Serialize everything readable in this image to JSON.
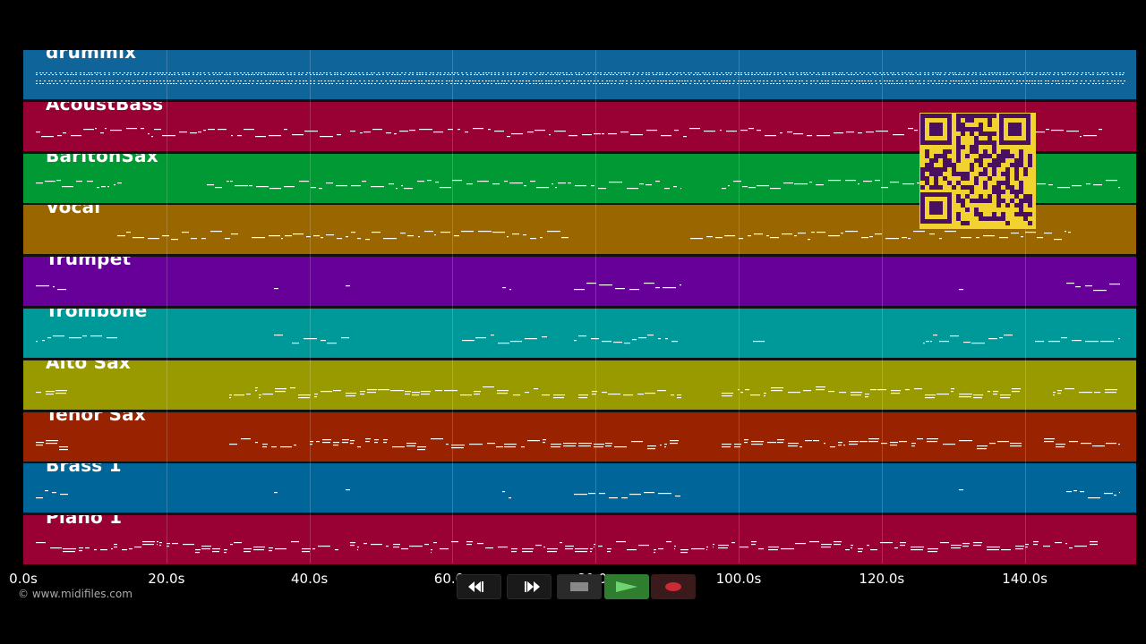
{
  "tracks": [
    {
      "name": "drummix",
      "color": "#0f6499",
      "pattern": "drum"
    },
    {
      "name": "AcoustBass",
      "color": "#990033",
      "pattern": "bass"
    },
    {
      "name": "BaritonSax",
      "color": "#009933",
      "pattern": "bari"
    },
    {
      "name": "Vocal",
      "color": "#996600",
      "pattern": "vocal"
    },
    {
      "name": "Trumpet",
      "color": "#660099",
      "pattern": "sparse"
    },
    {
      "name": "Trombone",
      "color": "#009999",
      "pattern": "trombone"
    },
    {
      "name": "Alto Sax",
      "color": "#999900",
      "pattern": "alto"
    },
    {
      "name": "Tenor Sax",
      "color": "#992200",
      "pattern": "tenor"
    },
    {
      "name": "Brass 1",
      "color": "#006699",
      "pattern": "sparse"
    },
    {
      "name": "Piano 1",
      "color": "#990033",
      "pattern": "piano"
    }
  ],
  "timeline": {
    "labels": [
      "0.0s",
      "20.0s",
      "40.0s",
      "60.0s",
      "80.0s",
      "100.0s",
      "120.0s",
      "140.0s"
    ]
  },
  "copyright": "© www.midifiles.com",
  "transport": {
    "rewind_icon": "rewind-icon",
    "fastforward_icon": "fast-forward-icon",
    "stop_icon": "stop-icon",
    "play_icon": "play-icon",
    "record_icon": "record-icon"
  },
  "colors": {
    "background": "#000000",
    "qr_fg": "#4a1060",
    "qr_bg": "#f2d22e",
    "play_green": "#2f7d2f",
    "record_red": "#cc2a36"
  }
}
